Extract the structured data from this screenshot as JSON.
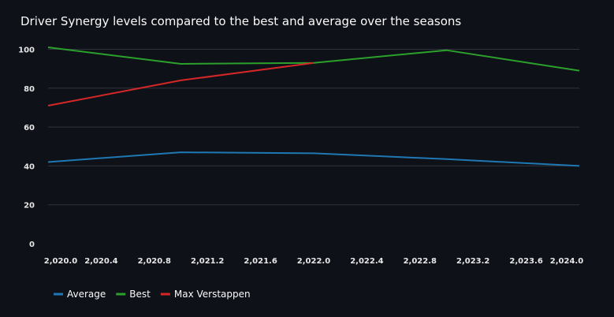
{
  "chart_data": {
    "type": "line",
    "title": "Driver Synergy levels compared to the best and average over the seasons",
    "x": [
      2020,
      2021,
      2022,
      2023,
      2024
    ],
    "series": [
      {
        "name": "Average",
        "color": "#1f77b4",
        "values": [
          42,
          47,
          46.5,
          43.5,
          40
        ]
      },
      {
        "name": "Best",
        "color": "#2ca02c",
        "values": [
          101,
          92.5,
          93,
          99.5,
          89
        ]
      },
      {
        "name": "Max Verstappen",
        "color": "#d62728",
        "values": [
          71,
          84,
          93,
          null,
          null
        ]
      }
    ],
    "xlim": [
      2020,
      2024
    ],
    "ylim": [
      0,
      101
    ],
    "x_ticks": [
      2020.0,
      2020.4,
      2020.8,
      2021.2,
      2021.6,
      2022.0,
      2022.4,
      2022.8,
      2023.2,
      2023.6,
      2024.0
    ],
    "x_tick_labels": [
      "2,020.0",
      "2,020.4",
      "2,020.8",
      "2,021.2",
      "2,021.6",
      "2,022.0",
      "2,022.4",
      "2,022.8",
      "2,023.2",
      "2,023.6",
      "2,024.0"
    ],
    "y_ticks": [
      0,
      20,
      40,
      60,
      80,
      100
    ],
    "y_tick_labels": [
      "0",
      "20",
      "40",
      "60",
      "80",
      "100"
    ],
    "grid": "horizontal",
    "legend": "bottom-left"
  }
}
